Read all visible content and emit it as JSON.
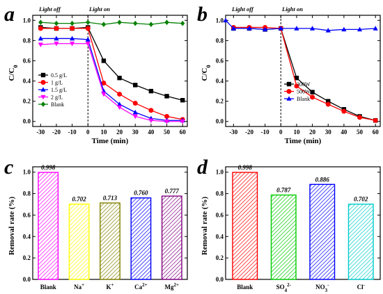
{
  "figure": {
    "panels": {
      "a": {
        "letter": "a",
        "light_off": "Light off",
        "light_on": "Light on",
        "xlabel": "Time (min)",
        "ylabel": "C/C",
        "ylabel_sub": "0"
      },
      "b": {
        "letter": "b",
        "light_off": "Light off",
        "light_on": "Light on",
        "xlabel": "Time (min)",
        "ylabel": "C/C",
        "ylabel_sub": "0"
      },
      "c": {
        "letter": "c",
        "ylabel": "Removal rate (%)"
      },
      "d": {
        "letter": "d",
        "ylabel": "Removal rate (%)"
      }
    }
  },
  "chart_data": [
    {
      "id": "a",
      "type": "line",
      "xlabel": "Time (min)",
      "ylabel": "C/C0",
      "xlim": [
        -35,
        63
      ],
      "ylim": [
        -0.05,
        1.05
      ],
      "xticks": [
        -30,
        -20,
        -10,
        0,
        10,
        20,
        30,
        40,
        50,
        60
      ],
      "yticks": [
        0.0,
        0.2,
        0.4,
        0.6,
        0.8,
        1.0
      ],
      "legend_position": "bottom-left",
      "x": [
        -30,
        -20,
        -10,
        0,
        10,
        20,
        30,
        40,
        50,
        60
      ],
      "series": [
        {
          "name": "0.5 g/L",
          "color": "#000000",
          "marker": "square",
          "values": [
            0.93,
            0.92,
            0.92,
            0.93,
            0.6,
            0.43,
            0.36,
            0.3,
            0.25,
            0.21
          ]
        },
        {
          "name": "1 g/L",
          "color": "#ff0000",
          "marker": "circle",
          "values": [
            0.92,
            0.92,
            0.92,
            0.92,
            0.38,
            0.27,
            0.18,
            0.11,
            0.05,
            0.02
          ]
        },
        {
          "name": "1.5 g/L",
          "color": "#0000ff",
          "marker": "triangle",
          "values": [
            0.82,
            0.82,
            0.82,
            0.81,
            0.3,
            0.17,
            0.09,
            0.03,
            0.01,
            0.01
          ]
        },
        {
          "name": "2 g/L",
          "color": "#ff00ff",
          "marker": "triangle-down",
          "values": [
            0.76,
            0.77,
            0.77,
            0.77,
            0.27,
            0.14,
            0.05,
            0.01,
            0.0,
            0.0
          ]
        },
        {
          "name": "Blank",
          "color": "#008000",
          "marker": "diamond",
          "values": [
            0.98,
            0.97,
            0.97,
            0.98,
            0.96,
            0.98,
            0.97,
            0.96,
            0.98,
            0.97
          ]
        }
      ]
    },
    {
      "id": "b",
      "type": "line",
      "xlabel": "Time (min)",
      "ylabel": "C/C0",
      "xlim": [
        -35,
        63
      ],
      "ylim": [
        -0.05,
        1.05
      ],
      "xticks": [
        -30,
        -20,
        -10,
        0,
        10,
        20,
        30,
        40,
        50,
        60
      ],
      "yticks": [
        0.0,
        0.2,
        0.4,
        0.6,
        0.8,
        1.0
      ],
      "legend_position": "center-right",
      "x": [
        -30,
        -20,
        -10,
        0,
        10,
        20,
        30,
        40,
        50,
        60
      ],
      "series": [
        {
          "name": "300W",
          "color": "#000000",
          "marker": "square",
          "values": [
            0.92,
            0.92,
            0.91,
            0.92,
            0.43,
            0.29,
            0.2,
            0.12,
            0.05,
            0.01
          ]
        },
        {
          "name": "500W",
          "color": "#ff0000",
          "marker": "circle",
          "values": [
            0.93,
            0.93,
            0.93,
            0.92,
            0.35,
            0.24,
            0.17,
            0.1,
            0.04,
            0.01
          ]
        },
        {
          "name": "Blank",
          "color": "#0000ff",
          "marker": "triangle",
          "values": [
            0.92,
            0.92,
            0.91,
            0.92,
            0.92,
            0.92,
            0.9,
            0.91,
            0.91,
            0.92
          ]
        }
      ],
      "start_point": {
        "x": -35,
        "y": 1.0
      }
    },
    {
      "id": "c",
      "type": "bar",
      "ylabel": "Removal rate (%)",
      "ylim": [
        0.0,
        1.05
      ],
      "yticks": [
        0.0,
        0.2,
        0.4,
        0.6,
        0.8,
        1.0
      ],
      "categories": [
        "Blank",
        "Na",
        "K",
        "Ca",
        "Mg"
      ],
      "category_sups": [
        "",
        "+",
        "+",
        "2+",
        "2+"
      ],
      "category_subs": [
        "",
        "",
        "",
        "",
        ""
      ],
      "values": [
        0.998,
        0.702,
        0.713,
        0.76,
        0.777
      ],
      "value_labels": [
        "0.998",
        "0.702",
        "0.713",
        "0.760",
        "0.777"
      ],
      "colors": [
        "#ff00ff",
        "#ffff00",
        "#808000",
        "#0000ff",
        "#800080"
      ]
    },
    {
      "id": "d",
      "type": "bar",
      "ylabel": "Removal rate (%)",
      "ylim": [
        0.0,
        1.05
      ],
      "yticks": [
        0.0,
        0.2,
        0.4,
        0.6,
        0.8,
        1.0
      ],
      "categories": [
        "Blank",
        "SO",
        "NO",
        "Cl"
      ],
      "category_sups": [
        "",
        "2-",
        "-",
        "-"
      ],
      "category_subs": [
        "",
        "4",
        "3",
        ""
      ],
      "values": [
        0.998,
        0.787,
        0.886,
        0.702
      ],
      "value_labels": [
        "0.998",
        "0.787",
        "0.886",
        "0.702"
      ],
      "colors": [
        "#ff0000",
        "#00cc00",
        "#0000ff",
        "#00cccc"
      ]
    }
  ]
}
